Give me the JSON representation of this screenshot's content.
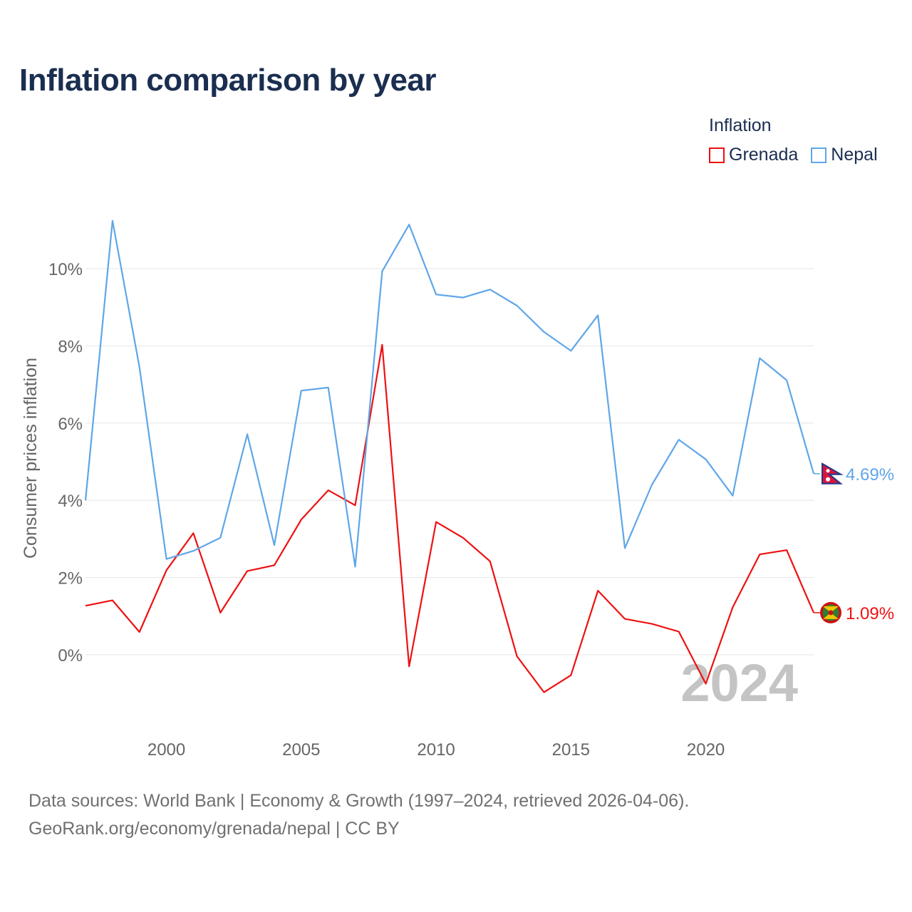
{
  "title": "Inflation comparison by year",
  "legend": {
    "title": "Inflation",
    "items": [
      {
        "label": "Grenada",
        "color": "#ee1111"
      },
      {
        "label": "Nepal",
        "color": "#5fa6e8"
      }
    ]
  },
  "footer": {
    "line1": "Data sources: World Bank | Economy & Growth (1997–2024, retrieved 2026-04-06).",
    "line2": "GeoRank.org/economy/grenada/nepal | CC BY"
  },
  "chart_data": {
    "type": "line",
    "title": "Inflation comparison by year",
    "xlabel": "",
    "ylabel": "Consumer prices inflation",
    "xlim": [
      1997,
      2024
    ],
    "ylim": [
      -1.7,
      11.7
    ],
    "xticks": [
      2000,
      2005,
      2010,
      2015,
      2020
    ],
    "yticks": [
      0,
      2,
      4,
      6,
      8,
      10
    ],
    "grid": true,
    "legend_position": "top-right",
    "watermark_year": "2024",
    "x": [
      1997,
      1998,
      1999,
      2000,
      2001,
      2002,
      2003,
      2004,
      2005,
      2006,
      2007,
      2008,
      2009,
      2010,
      2011,
      2012,
      2013,
      2014,
      2015,
      2016,
      2017,
      2018,
      2019,
      2020,
      2021,
      2022,
      2023,
      2024
    ],
    "series": [
      {
        "name": "Grenada",
        "color": "#ee1111",
        "flag": "grenada-flag",
        "end_label": "1.09%",
        "values": [
          1.27,
          1.41,
          0.59,
          2.19,
          3.15,
          1.09,
          2.17,
          2.32,
          3.5,
          4.26,
          3.87,
          8.03,
          -0.3,
          3.44,
          3.03,
          2.42,
          -0.04,
          -0.97,
          -0.53,
          1.66,
          0.93,
          0.8,
          0.6,
          -0.75,
          1.23,
          2.6,
          2.71,
          1.09
        ]
      },
      {
        "name": "Nepal",
        "color": "#5fa6e8",
        "flag": "nepal-flag",
        "end_label": "4.69%",
        "values": [
          4.0,
          11.24,
          7.45,
          2.48,
          2.69,
          3.03,
          5.71,
          2.84,
          6.84,
          6.92,
          2.28,
          9.93,
          11.14,
          9.33,
          9.25,
          9.46,
          9.04,
          8.36,
          7.87,
          8.79,
          2.76,
          4.4,
          5.57,
          5.06,
          4.12,
          7.68,
          7.11,
          4.69
        ]
      }
    ]
  }
}
